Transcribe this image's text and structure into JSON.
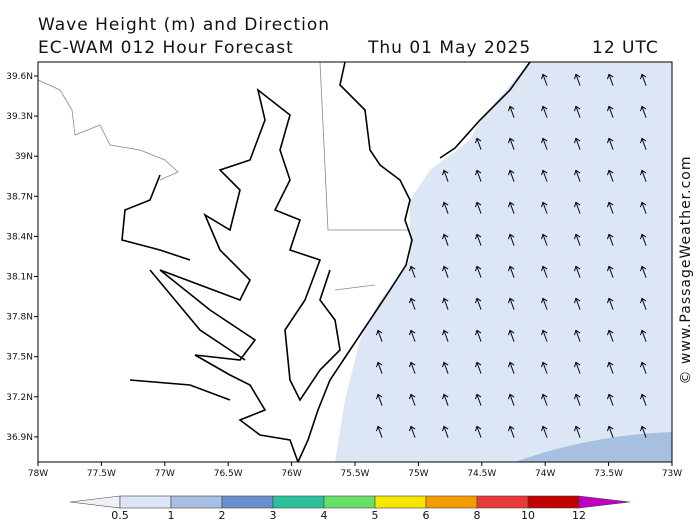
{
  "header": {
    "title": "Wave Height (m) and Direction",
    "model": "EC-WAM 012 Hour Forecast",
    "date": "Thu 01 May 2025",
    "time": "12 UTC"
  },
  "map": {
    "lat_labels": [
      "39.6N",
      "39.3N",
      "39N",
      "38.7N",
      "38.4N",
      "38.1N",
      "37.8N",
      "37.5N",
      "37.2N",
      "36.9N"
    ],
    "lon_labels": [
      "78W",
      "77.5W",
      "77W",
      "76.5W",
      "76W",
      "75.5W",
      "75W",
      "74.5W",
      "74W",
      "73.5W",
      "73W"
    ]
  },
  "legend": {
    "labels": [
      0.5,
      1,
      2,
      3,
      4,
      5,
      6,
      8,
      10,
      12
    ],
    "colors": [
      "#eef0f8",
      "#dde6f5",
      "#a7bfe0",
      "#6a8fcf",
      "#2dbf9a",
      "#66e066",
      "#f5e600",
      "#f59a00",
      "#e83a3a",
      "#c00000",
      "#c000c0"
    ]
  },
  "credit": "© www.PassageWeather.com"
}
